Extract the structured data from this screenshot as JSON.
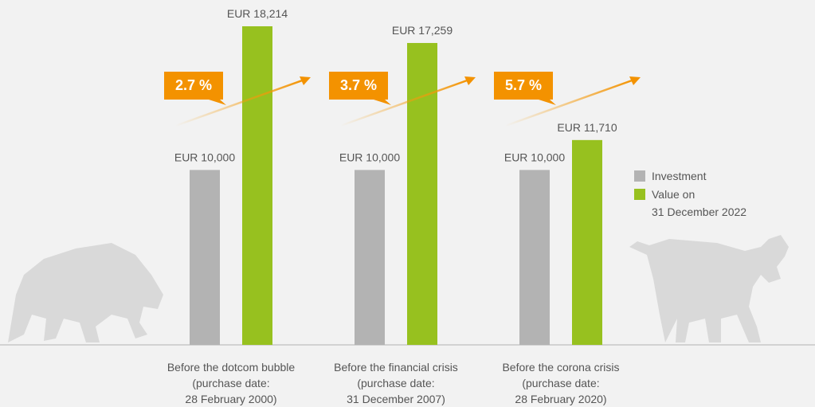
{
  "chart_data": {
    "type": "bar",
    "categories": [
      "Before the dotcom bubble\n(purchase date:\n28 February 2000)",
      "Before the financial crisis\n(purchase date:\n31 December 2007)",
      "Before the corona crisis\n(purchase date:\n28 February 2020)"
    ],
    "series": [
      {
        "name": "Investment",
        "color": "#b3b3b3",
        "values": [
          10000,
          10000,
          10000
        ],
        "value_labels": [
          "EUR 10,000",
          "EUR 10,000",
          "EUR 10,000"
        ]
      },
      {
        "name": "Value on\n31 December 2022",
        "color": "#97c11f",
        "values": [
          18214,
          17259,
          11710
        ],
        "value_labels": [
          "EUR 18,214",
          "EUR 17,259",
          "EUR 11,710"
        ]
      }
    ],
    "annotations": [
      "2.7 %",
      "3.7 %",
      "5.7 %"
    ],
    "annotation_color": "#f39200"
  }
}
